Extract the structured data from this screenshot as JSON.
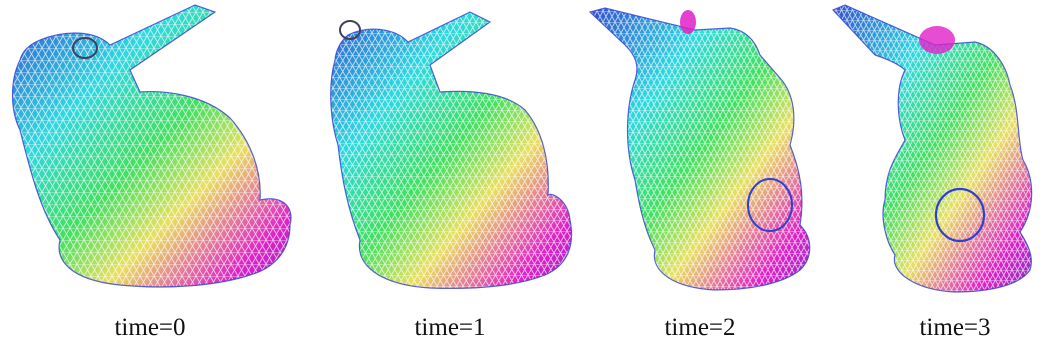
{
  "figure": {
    "panels": [
      {
        "caption": "time=0",
        "view": "side"
      },
      {
        "caption": "time=1",
        "view": "side-rotated-slightly"
      },
      {
        "caption": "time=2",
        "view": "three-quarter"
      },
      {
        "caption": "time=3",
        "view": "front"
      }
    ],
    "colors": {
      "magenta": "#e020c8",
      "blue": "#3040d0",
      "cyan": "#30d8e0",
      "green": "#40e060",
      "yellow": "#e8e060",
      "orange": "#f0a040",
      "violet": "#7030c0",
      "dark": "#404060"
    },
    "style": "wireframe triangle mesh with rainbow gradient shading"
  }
}
